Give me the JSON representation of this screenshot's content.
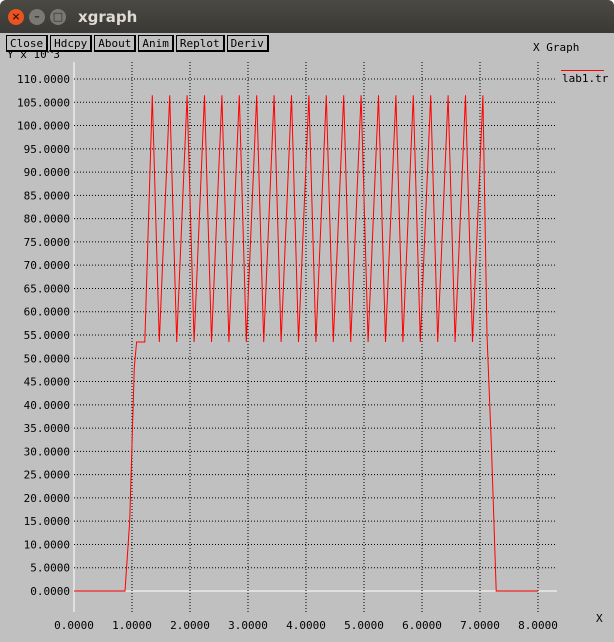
{
  "window": {
    "title": "xgraph",
    "close_glyph": "×",
    "minimize_glyph": "–",
    "maximize_glyph": "□"
  },
  "toolbar": {
    "buttons": [
      "Close",
      "Hdcpy",
      "About",
      "Anim",
      "Replot",
      "Deriv"
    ]
  },
  "plot_title": "X Graph",
  "legend": {
    "label": "lab1.tr",
    "color": "#ff0000"
  },
  "chart_data": {
    "type": "line",
    "ylabel": "Y x 10^3",
    "xlabel": "X",
    "xlim": [
      0,
      8
    ],
    "ylim": [
      0,
      110
    ],
    "x_ticks": [
      "0.0000",
      "1.0000",
      "2.0000",
      "3.0000",
      "4.0000",
      "5.0000",
      "6.0000",
      "7.0000",
      "8.0000"
    ],
    "x_tick_values": [
      0,
      1,
      2,
      3,
      4,
      5,
      6,
      7,
      8
    ],
    "y_ticks": [
      "0.0000",
      "5.0000",
      "10.0000",
      "15.0000",
      "20.0000",
      "25.0000",
      "30.0000",
      "35.0000",
      "40.0000",
      "45.0000",
      "50.0000",
      "55.0000",
      "60.0000",
      "65.0000",
      "70.0000",
      "75.0000",
      "80.0000",
      "85.0000",
      "90.0000",
      "95.0000",
      "100.0000",
      "105.0000",
      "110.0000"
    ],
    "y_tick_values": [
      0,
      5,
      10,
      15,
      20,
      25,
      30,
      35,
      40,
      45,
      50,
      55,
      60,
      65,
      70,
      75,
      80,
      85,
      90,
      95,
      100,
      105,
      110
    ],
    "grid": true,
    "line_color": "#ff0000",
    "series": [
      {
        "name": "lab1.tr",
        "points": [
          [
            0.0,
            0
          ],
          [
            0.88,
            0
          ],
          [
            0.96,
            15
          ],
          [
            1.04,
            48
          ],
          [
            1.08,
            53.5
          ],
          [
            1.22,
            53.5
          ],
          [
            1.35,
            106.5
          ],
          [
            1.47,
            53.5
          ],
          [
            1.65,
            106.5
          ],
          [
            1.77,
            53.5
          ],
          [
            1.95,
            106.5
          ],
          [
            2.07,
            53.5
          ],
          [
            2.25,
            106.5
          ],
          [
            2.37,
            53.5
          ],
          [
            2.55,
            106.5
          ],
          [
            2.67,
            53.5
          ],
          [
            2.85,
            106.5
          ],
          [
            2.97,
            53.5
          ],
          [
            3.15,
            106.5
          ],
          [
            3.27,
            53.5
          ],
          [
            3.45,
            106.5
          ],
          [
            3.57,
            53.5
          ],
          [
            3.75,
            106.5
          ],
          [
            3.87,
            53.5
          ],
          [
            4.05,
            106.5
          ],
          [
            4.17,
            53.5
          ],
          [
            4.35,
            106.5
          ],
          [
            4.47,
            53.5
          ],
          [
            4.65,
            106.5
          ],
          [
            4.77,
            53.5
          ],
          [
            4.95,
            106.5
          ],
          [
            5.07,
            53.5
          ],
          [
            5.25,
            106.5
          ],
          [
            5.37,
            53.5
          ],
          [
            5.55,
            106.5
          ],
          [
            5.67,
            53.5
          ],
          [
            5.85,
            106.5
          ],
          [
            5.97,
            53.5
          ],
          [
            6.15,
            106.5
          ],
          [
            6.27,
            53.5
          ],
          [
            6.45,
            106.5
          ],
          [
            6.57,
            53.5
          ],
          [
            6.75,
            106.5
          ],
          [
            6.87,
            53.5
          ],
          [
            7.05,
            106.5
          ],
          [
            7.12,
            55
          ],
          [
            7.2,
            30
          ],
          [
            7.28,
            0
          ],
          [
            8.0,
            0
          ]
        ]
      }
    ]
  }
}
